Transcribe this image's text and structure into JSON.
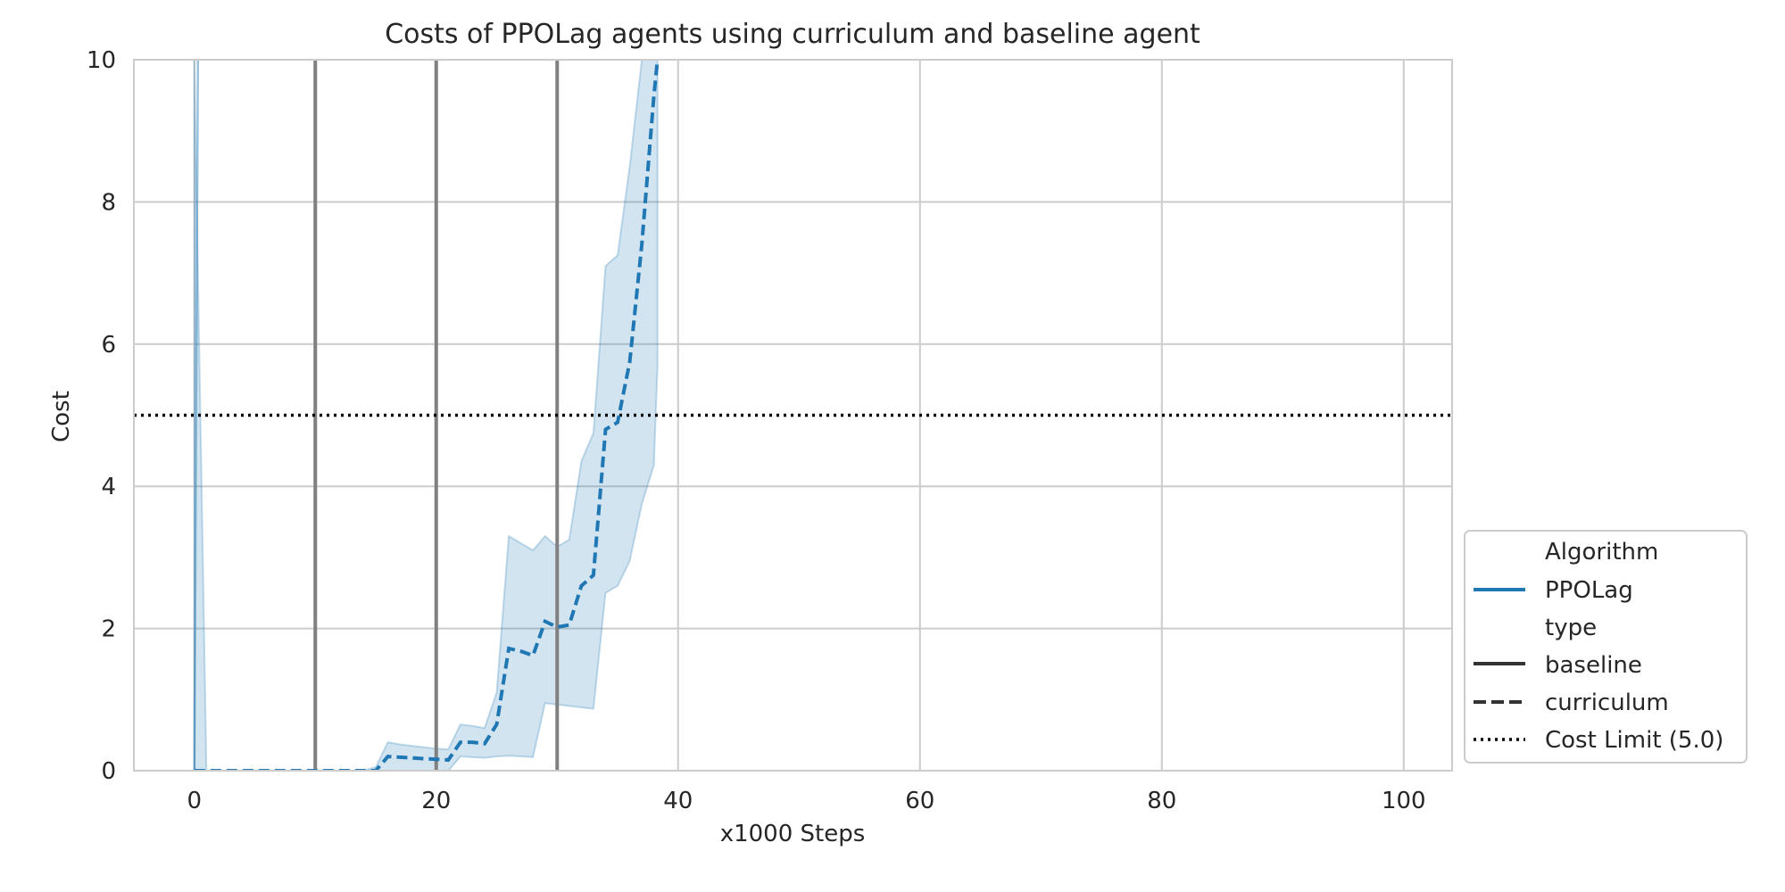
{
  "chart_data": {
    "type": "line",
    "title": "Costs of PPOLag agents using curriculum and baseline agent",
    "xlabel": "x1000 Steps",
    "ylabel": "Cost",
    "xlim": [
      -5,
      104
    ],
    "ylim": [
      0,
      10
    ],
    "xticks": [
      0,
      20,
      40,
      60,
      80,
      100
    ],
    "yticks": [
      0,
      2,
      4,
      6,
      8,
      10
    ],
    "grid": true,
    "legend_placement": "lower right, outside plot",
    "legend": {
      "header_algorithm": "Algorithm",
      "algorithm_entry": "PPOLag",
      "header_type": "type",
      "type_baseline": "baseline",
      "type_curriculum": "curriculum",
      "cost_limit": "Cost Limit (5.0)"
    },
    "colors": {
      "series": "#1f77b4",
      "band": "#1f77b4",
      "stage_lines": "#808080",
      "cost_limit": "#000000"
    },
    "cost_limit": 5.0,
    "stage_boundaries": [
      10,
      20,
      30
    ],
    "series": [
      {
        "algorithm": "PPOLag",
        "type": "curriculum",
        "style": "dashed",
        "x": [
          0,
          1,
          2,
          3,
          4,
          5,
          6,
          7,
          8,
          9,
          10,
          11,
          12,
          13,
          14,
          15,
          16,
          17,
          18,
          19,
          20,
          21,
          22,
          23,
          24,
          25,
          26,
          27,
          28,
          29,
          30,
          31,
          32,
          33,
          34,
          35,
          36,
          37,
          38,
          38.3
        ],
        "y": [
          0,
          0,
          0,
          0,
          0,
          0,
          0,
          0,
          0,
          0,
          0,
          0,
          0,
          0,
          0,
          0,
          0.2,
          0.19,
          0.18,
          0.17,
          0.16,
          0.15,
          0.4,
          0.4,
          0.38,
          0.65,
          1.72,
          1.68,
          1.62,
          2.1,
          2.02,
          2.05,
          2.6,
          2.75,
          4.8,
          4.9,
          5.75,
          7.4,
          9.5,
          10.0
        ],
        "lower": [
          0,
          0,
          0,
          0,
          0,
          0,
          0,
          0,
          0,
          0,
          0,
          0,
          0,
          0,
          0,
          0,
          0,
          0,
          0,
          0,
          0,
          0,
          0.2,
          0.19,
          0.18,
          0.2,
          0.21,
          0.2,
          0.19,
          0.95,
          0.93,
          0.91,
          0.89,
          0.87,
          2.5,
          2.6,
          2.95,
          3.75,
          4.3,
          5.7
        ],
        "upper": [
          10,
          0,
          0,
          0,
          0,
          0,
          0,
          0,
          0,
          0,
          0,
          0,
          0,
          0,
          0,
          0.05,
          0.4,
          0.37,
          0.35,
          0.33,
          0.31,
          0.3,
          0.65,
          0.63,
          0.6,
          1.1,
          3.3,
          3.2,
          3.1,
          3.3,
          3.15,
          3.25,
          4.35,
          4.75,
          7.1,
          7.25,
          8.5,
          10.0,
          10.0,
          10.0
        ]
      },
      {
        "algorithm": "PPOLag",
        "type": "baseline",
        "style": "solid",
        "x": [
          0,
          0.3
        ],
        "y": [
          0,
          10
        ]
      }
    ]
  }
}
